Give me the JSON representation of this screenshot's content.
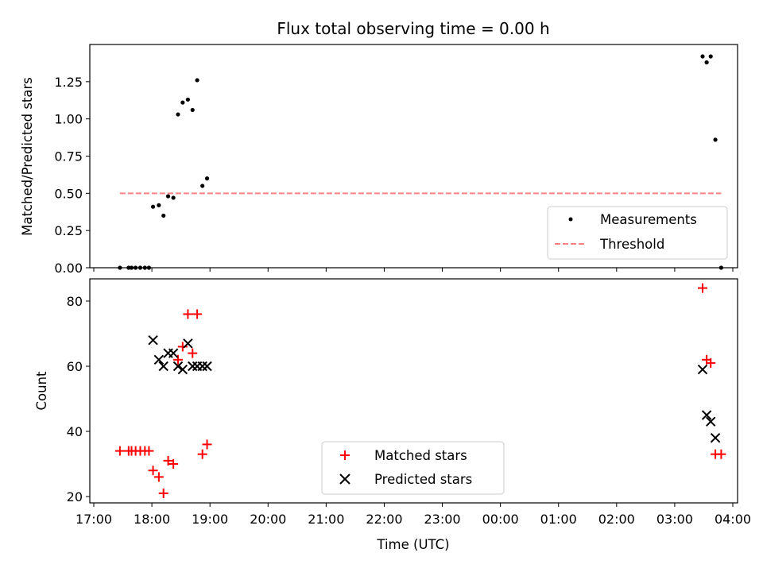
{
  "chart_data": [
    {
      "type": "scatter",
      "title": "Flux total observing time = 0.00 h",
      "xlabel": "",
      "ylabel": "Matched/Predicted stars",
      "ylim": [
        0,
        1.5
      ],
      "yticks": [
        "0.00",
        "0.25",
        "0.50",
        "0.75",
        "1.00",
        "1.25"
      ],
      "ytick_values": [
        0,
        0.25,
        0.5,
        0.75,
        1.0,
        1.25
      ],
      "series": [
        {
          "name": "Measurements",
          "marker": "dot",
          "color": "#000000",
          "x": [
            17.45,
            17.6,
            17.65,
            17.72,
            17.8,
            17.88,
            17.95,
            18.02,
            18.12,
            18.2,
            18.28,
            18.37,
            18.45,
            18.53,
            18.62,
            18.7,
            18.78,
            18.87,
            18.95,
            27.48,
            27.55,
            27.62,
            27.7,
            27.8
          ],
          "y": [
            0,
            0,
            0,
            0,
            0,
            0,
            0,
            0.41,
            0.42,
            0.35,
            0.48,
            0.47,
            1.03,
            1.11,
            1.13,
            1.06,
            1.26,
            0.55,
            0.6,
            1.42,
            1.38,
            1.42,
            0.86,
            0
          ]
        },
        {
          "name": "Threshold",
          "style": "dashed",
          "color": "#ff8080",
          "x": [
            17.45,
            27.8
          ],
          "y": [
            0.5,
            0.5
          ]
        }
      ],
      "legend": [
        "Measurements",
        "Threshold"
      ],
      "legend_position": "lower-right"
    },
    {
      "type": "scatter",
      "title": "",
      "xlabel": "Time (UTC)",
      "ylabel": "Count",
      "ylim": [
        18,
        88
      ],
      "yticks": [
        "20",
        "40",
        "60",
        "80"
      ],
      "ytick_values": [
        20,
        40,
        60,
        80
      ],
      "xticks": [
        "17:00",
        "18:00",
        "19:00",
        "20:00",
        "21:00",
        "22:00",
        "23:00",
        "00:00",
        "01:00",
        "02:00",
        "03:00",
        "04:00"
      ],
      "xtick_values": [
        17,
        18,
        19,
        20,
        21,
        22,
        23,
        24,
        25,
        26,
        27,
        28
      ],
      "series": [
        {
          "name": "Matched stars",
          "marker": "plus",
          "color": "#ff0000",
          "x": [
            17.45,
            17.6,
            17.65,
            17.72,
            17.8,
            17.88,
            17.95,
            18.02,
            18.12,
            18.2,
            18.28,
            18.37,
            18.45,
            18.53,
            18.62,
            18.7,
            18.78,
            18.87,
            18.95,
            27.48,
            27.55,
            27.62,
            27.7,
            27.8
          ],
          "y": [
            34,
            34,
            34,
            34,
            34,
            34,
            34,
            28,
            26,
            21,
            31,
            30,
            62,
            66,
            76,
            64,
            76,
            33,
            36,
            84,
            62,
            61,
            33,
            33
          ]
        },
        {
          "name": "Predicted stars",
          "marker": "x",
          "color": "#000000",
          "x": [
            18.02,
            18.12,
            18.2,
            18.28,
            18.37,
            18.45,
            18.53,
            18.62,
            18.7,
            18.78,
            18.87,
            18.95,
            27.48,
            27.55,
            27.62,
            27.7
          ],
          "y": [
            68,
            62,
            60,
            64,
            64,
            60,
            59,
            67,
            60,
            60,
            60,
            60,
            59,
            45,
            43,
            38
          ]
        }
      ],
      "legend": [
        "Matched stars",
        "Predicted stars"
      ],
      "legend_position": "lower-center"
    }
  ]
}
